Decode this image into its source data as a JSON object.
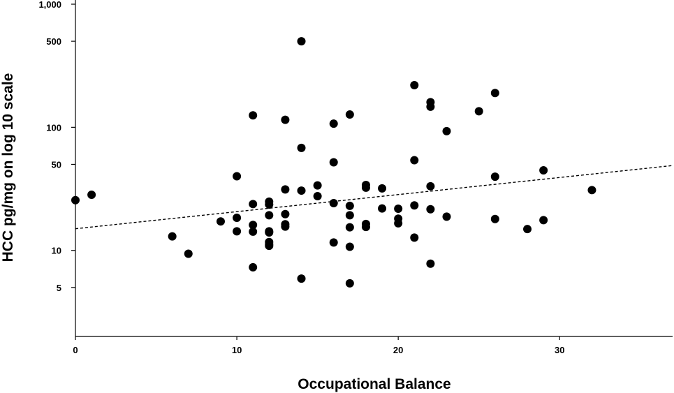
{
  "chart_data": {
    "type": "scatter",
    "title": "",
    "xlabel": "Occupational Balance",
    "ylabel": "HCC pg/mg on log 10 scale",
    "xlim": [
      0,
      37
    ],
    "ylim": [
      2,
      1000
    ],
    "y_scale": "log10",
    "x_ticks": [
      0,
      10,
      20,
      30
    ],
    "y_ticks": [
      {
        "value": 5,
        "label": "5"
      },
      {
        "value": 10,
        "label": "10"
      },
      {
        "value": 50,
        "label": "50"
      },
      {
        "value": 100,
        "label": "100"
      },
      {
        "value": 500,
        "label": "500"
      },
      {
        "value": 1000,
        "label": "1,000"
      }
    ],
    "grid": false,
    "legend": "none",
    "colors": {
      "points": "#000000",
      "fit_line": "#000000"
    },
    "fit_line": {
      "style": "dashed",
      "x": [
        0,
        37
      ],
      "y": [
        15,
        48.9
      ]
    },
    "points": [
      {
        "x": 0,
        "y": 25.6
      },
      {
        "x": 1,
        "y": 28.3
      },
      {
        "x": 6,
        "y": 13.0
      },
      {
        "x": 7,
        "y": 9.4
      },
      {
        "x": 9,
        "y": 17.2
      },
      {
        "x": 10,
        "y": 40
      },
      {
        "x": 10,
        "y": 18.4
      },
      {
        "x": 10,
        "y": 14.3
      },
      {
        "x": 11,
        "y": 125
      },
      {
        "x": 11,
        "y": 23.8
      },
      {
        "x": 11,
        "y": 16.1
      },
      {
        "x": 11,
        "y": 14.2
      },
      {
        "x": 11,
        "y": 7.3
      },
      {
        "x": 12,
        "y": 24.9
      },
      {
        "x": 12,
        "y": 23.6
      },
      {
        "x": 12,
        "y": 19.3
      },
      {
        "x": 12,
        "y": 14.3
      },
      {
        "x": 12,
        "y": 14.0
      },
      {
        "x": 12,
        "y": 11.7
      },
      {
        "x": 12,
        "y": 11.2
      },
      {
        "x": 12,
        "y": 10.9
      },
      {
        "x": 13,
        "y": 115
      },
      {
        "x": 13,
        "y": 31.3
      },
      {
        "x": 13,
        "y": 19.7
      },
      {
        "x": 13,
        "y": 16.3
      },
      {
        "x": 13,
        "y": 15.6
      },
      {
        "x": 14,
        "y": 500
      },
      {
        "x": 14,
        "y": 68
      },
      {
        "x": 14,
        "y": 30.6
      },
      {
        "x": 14,
        "y": 5.9
      },
      {
        "x": 15,
        "y": 33.7
      },
      {
        "x": 15,
        "y": 27.6
      },
      {
        "x": 16,
        "y": 107
      },
      {
        "x": 16,
        "y": 52
      },
      {
        "x": 16,
        "y": 24.2
      },
      {
        "x": 16,
        "y": 11.6
      },
      {
        "x": 17,
        "y": 127
      },
      {
        "x": 17,
        "y": 23.0
      },
      {
        "x": 17,
        "y": 19.3
      },
      {
        "x": 17,
        "y": 15.4
      },
      {
        "x": 17,
        "y": 10.7
      },
      {
        "x": 17,
        "y": 5.4
      },
      {
        "x": 18,
        "y": 34.0
      },
      {
        "x": 18,
        "y": 32.3
      },
      {
        "x": 18,
        "y": 16.4
      },
      {
        "x": 18,
        "y": 15.5
      },
      {
        "x": 19,
        "y": 31.9
      },
      {
        "x": 19,
        "y": 21.9
      },
      {
        "x": 20,
        "y": 21.8
      },
      {
        "x": 20,
        "y": 18.1
      },
      {
        "x": 20,
        "y": 16.6
      },
      {
        "x": 21,
        "y": 220
      },
      {
        "x": 21,
        "y": 54
      },
      {
        "x": 21,
        "y": 23.2
      },
      {
        "x": 21,
        "y": 12.7
      },
      {
        "x": 22,
        "y": 160
      },
      {
        "x": 22,
        "y": 147
      },
      {
        "x": 22,
        "y": 33.2
      },
      {
        "x": 22,
        "y": 21.6
      },
      {
        "x": 22,
        "y": 7.8
      },
      {
        "x": 23,
        "y": 93
      },
      {
        "x": 23,
        "y": 18.8
      },
      {
        "x": 25,
        "y": 135
      },
      {
        "x": 26,
        "y": 190
      },
      {
        "x": 26,
        "y": 39.7
      },
      {
        "x": 26,
        "y": 18.0
      },
      {
        "x": 28,
        "y": 14.9
      },
      {
        "x": 29,
        "y": 44.7
      },
      {
        "x": 29,
        "y": 17.6
      },
      {
        "x": 32,
        "y": 30.9
      }
    ]
  }
}
